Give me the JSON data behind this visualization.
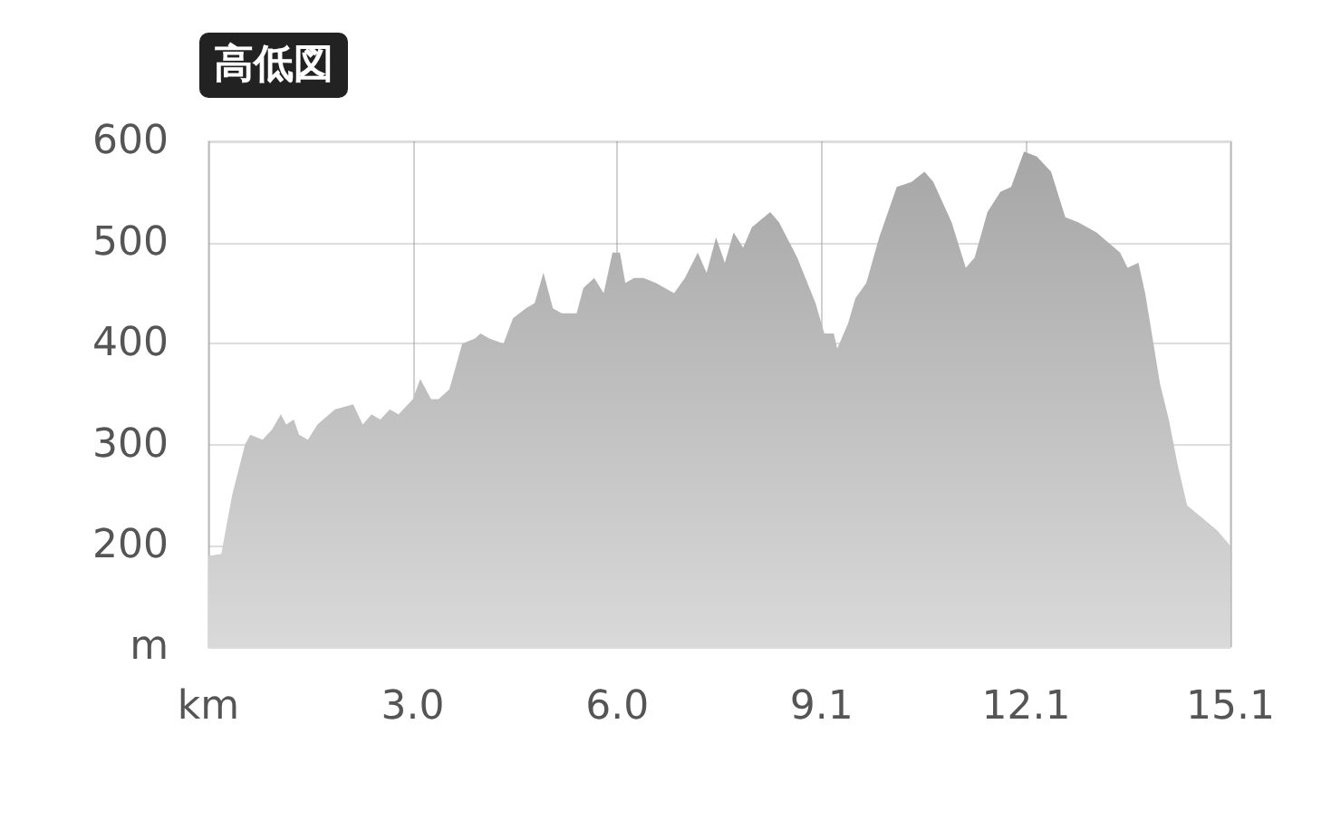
{
  "chart_data": {
    "type": "area",
    "title": "高低図",
    "x": [
      0,
      0.19,
      0.35,
      0.54,
      0.62,
      0.8,
      0.94,
      1.07,
      1.15,
      1.26,
      1.34,
      1.47,
      1.61,
      1.87,
      2.14,
      2.28,
      2.41,
      2.54,
      2.68,
      2.81,
      3.02,
      3.13,
      3.29,
      3.4,
      3.56,
      3.75,
      3.94,
      4.02,
      4.15,
      4.36,
      4.5,
      4.69,
      4.82,
      4.95,
      5.09,
      5.22,
      5.44,
      5.54,
      5.7,
      5.84,
      5.97,
      6.08,
      6.16,
      6.29,
      6.43,
      6.61,
      6.88,
      7.04,
      7.23,
      7.36,
      7.5,
      7.63,
      7.76,
      7.9,
      8.03,
      8.3,
      8.43,
      8.7,
      8.97,
      9.1,
      9.24,
      9.29,
      9.45,
      9.56,
      9.72,
      9.91,
      10.17,
      10.39,
      10.58,
      10.71,
      10.98,
      11.19,
      11.32,
      11.51,
      11.7,
      11.86,
      12.05,
      12.24,
      12.45,
      12.66,
      12.85,
      13.12,
      13.47,
      13.58,
      13.74,
      13.84,
      14.06,
      14.19,
      14.32,
      14.46,
      14.73,
      14.91,
      15.1
    ],
    "series": [
      {
        "color": "#a6a6a6",
        "values": [
          190,
          192,
          250,
          300,
          310,
          305,
          315,
          330,
          320,
          325,
          310,
          305,
          320,
          335,
          340,
          320,
          330,
          325,
          335,
          330,
          345,
          365,
          345,
          345,
          355,
          400,
          405,
          410,
          405,
          400,
          425,
          435,
          440,
          470,
          435,
          430,
          430,
          455,
          465,
          450,
          490,
          490,
          460,
          465,
          465,
          460,
          450,
          465,
          490,
          470,
          505,
          480,
          510,
          495,
          515,
          530,
          520,
          485,
          440,
          410,
          410,
          395,
          420,
          445,
          460,
          505,
          555,
          560,
          570,
          560,
          520,
          475,
          485,
          530,
          550,
          555,
          590,
          585,
          570,
          525,
          520,
          510,
          490,
          475,
          480,
          450,
          360,
          325,
          280,
          240,
          225,
          215,
          200
        ]
      }
    ],
    "xlim": [
      0,
      15.1
    ],
    "xticks": [
      {
        "value": 0,
        "label": "km"
      },
      {
        "value": 3.02,
        "label": "3.0"
      },
      {
        "value": 6.04,
        "label": "6.0"
      },
      {
        "value": 9.06,
        "label": "9.1"
      },
      {
        "value": 12.08,
        "label": "12.1"
      },
      {
        "value": 15.1,
        "label": "15.1"
      }
    ],
    "ylim": [
      100,
      600
    ],
    "yticks": [
      {
        "value": 100,
        "label": "m"
      },
      200,
      300,
      400,
      500,
      600
    ],
    "grid": true
  }
}
